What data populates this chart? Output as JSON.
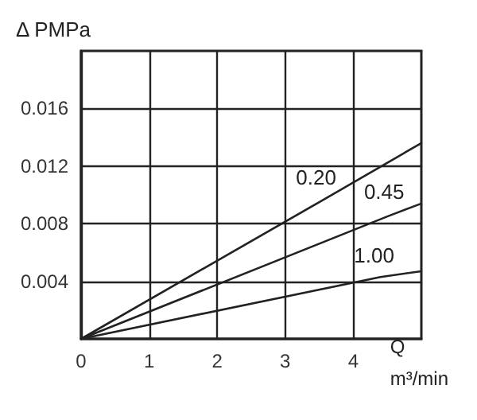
{
  "chart_data": {
    "type": "line",
    "ylabel": "Δ PMPa",
    "xlabel": "Q\nm³/min",
    "marker": "none",
    "line_style": "solid",
    "grid": true,
    "xlim": [
      0,
      5
    ],
    "xticks": [
      0,
      1,
      2,
      3,
      4
    ],
    "ylim": [
      0,
      0.02
    ],
    "yticks": [
      0.004,
      0.008,
      0.012,
      0.016
    ],
    "series": [
      {
        "name": "0.20",
        "color": "#222222",
        "x": [
          0,
          3.5,
          5
        ],
        "values": [
          0,
          0.0095,
          0.0136
        ]
      },
      {
        "name": "0.45",
        "color": "#222222",
        "x": [
          0,
          4.5,
          5
        ],
        "values": [
          0,
          0.0085,
          0.0094
        ]
      },
      {
        "name": "1.00",
        "color": "#222222",
        "x": [
          0,
          4.4,
          5
        ],
        "values": [
          0,
          0.0043,
          0.0047
        ]
      }
    ]
  }
}
